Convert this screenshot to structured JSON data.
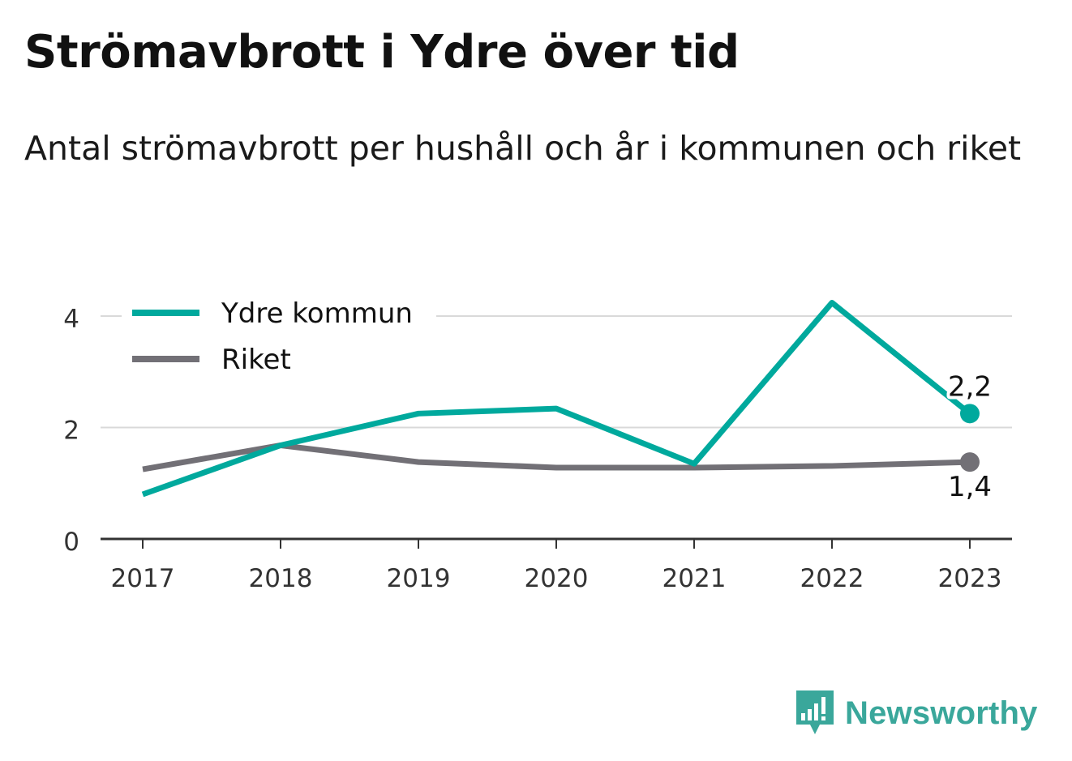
{
  "header": {
    "title": "Strömavbrott i Ydre över tid",
    "subtitle": "Antal strömavbrott per hushåll och år i kommunen och riket"
  },
  "brand": {
    "name": "Newsworthy",
    "icon": "newsworthy-bar-chart-icon",
    "color": "#3aa79b"
  },
  "chart_data": {
    "type": "line",
    "x": [
      2017,
      2018,
      2019,
      2020,
      2021,
      2022,
      2023
    ],
    "ylim": [
      0,
      4.4
    ],
    "yticks": [
      0,
      2,
      4
    ],
    "grid": true,
    "legend_position": "top-left",
    "series": [
      {
        "name": "Ydre kommun",
        "color": "#00a99d",
        "values": [
          0.8,
          1.68,
          2.25,
          2.34,
          1.35,
          4.24,
          2.25
        ],
        "end_label": "2,2",
        "end_label_position": "above"
      },
      {
        "name": "Riket",
        "color": "#727076",
        "values": [
          1.25,
          1.68,
          1.38,
          1.28,
          1.28,
          1.31,
          1.38
        ],
        "end_label": "1,4",
        "end_label_position": "below"
      }
    ]
  }
}
